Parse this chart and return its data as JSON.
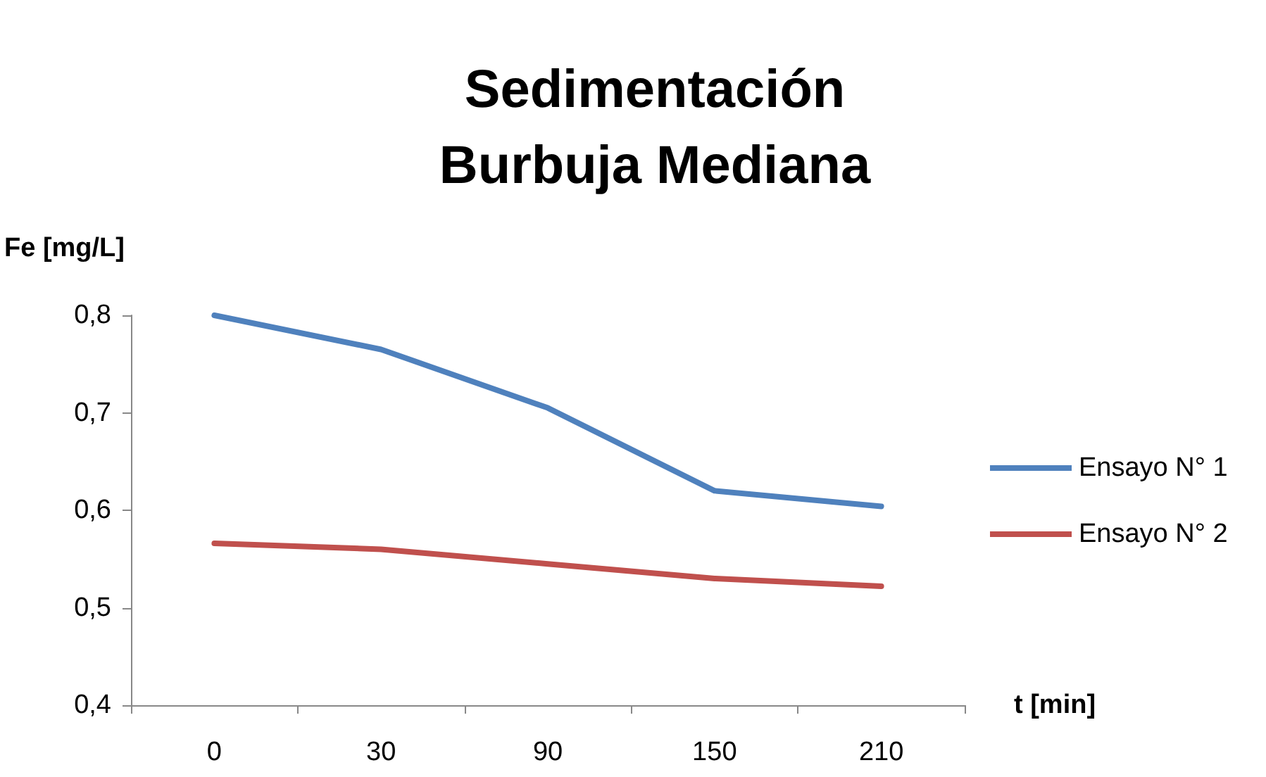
{
  "chart_data": {
    "type": "line",
    "title": "Sedimentación\nBurbuja Mediana",
    "xlabel": "t [min]",
    "ylabel": "Fe [mg/L]",
    "categories": [
      "0",
      "30",
      "90",
      "150",
      "210"
    ],
    "series": [
      {
        "name": "Ensayo N° 1",
        "color": "#4f81bd",
        "values": [
          0.8,
          0.765,
          0.705,
          0.62,
          0.604
        ]
      },
      {
        "name": "Ensayo N° 2",
        "color": "#c0504d",
        "values": [
          0.566,
          0.56,
          0.545,
          0.53,
          0.522
        ]
      }
    ],
    "ylim": [
      0.4,
      0.8
    ],
    "yticks": [
      {
        "value": 0.4,
        "label": "0,4"
      },
      {
        "value": 0.5,
        "label": "0,5"
      },
      {
        "value": 0.6,
        "label": "0,6"
      },
      {
        "value": 0.7,
        "label": "0,7"
      },
      {
        "value": 0.8,
        "label": "0,8"
      }
    ],
    "grid": false,
    "legend": "right",
    "marker": "none",
    "line_style": "solid"
  }
}
